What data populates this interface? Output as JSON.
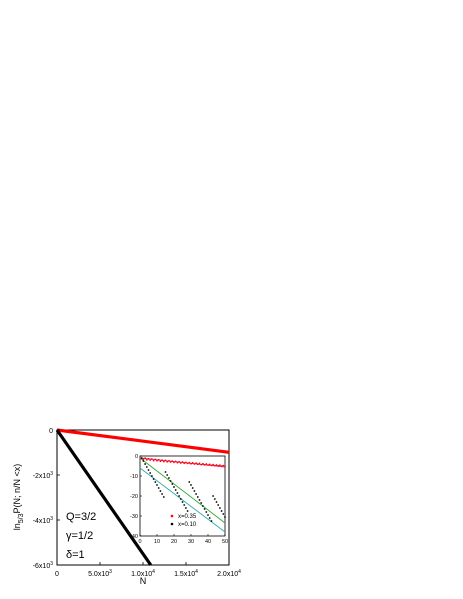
{
  "chart_data": [
    {
      "type": "line",
      "xlabel": "N",
      "ylabel": "ln",
      "ylabel_sub": "5/3",
      "ylabel_tail": "P(N; n/N <x)",
      "xlim": [
        0,
        20000
      ],
      "ylim": [
        -6000,
        0
      ],
      "x_ticks": [
        0,
        5000,
        10000,
        15000,
        20000
      ],
      "x_tick_labels": [
        "0",
        "5.0x10",
        "1.0x10",
        "1.5x10",
        "2.0x10"
      ],
      "x_tick_exps": [
        "",
        "3",
        "4",
        "4",
        "4"
      ],
      "y_ticks": [
        0,
        -2000,
        -4000,
        -6000
      ],
      "y_tick_labels": [
        "0",
        "-2x10",
        "-4x10",
        "-6x10"
      ],
      "y_tick_exps": [
        "",
        "3",
        "3",
        "3"
      ],
      "params": [
        "Q=3/2",
        "γ=1/2",
        "δ=1"
      ],
      "series": [
        {
          "color": "#ff0000",
          "x": [
            0,
            20000
          ],
          "y": [
            0,
            -990
          ]
        },
        {
          "color": "#000000",
          "x": [
            0,
            10900
          ],
          "y": [
            0,
            -6000
          ]
        }
      ]
    },
    {
      "type": "scatter",
      "inset": true,
      "xlim": [
        0,
        50
      ],
      "ylim": [
        -40,
        0
      ],
      "x_ticks": [
        0,
        10,
        20,
        30,
        40,
        50
      ],
      "x_tick_labels": [
        "0",
        "10",
        "20",
        "30",
        "40",
        "50"
      ],
      "y_ticks": [
        0,
        -10,
        -20,
        -30,
        -40
      ],
      "y_tick_labels": [
        "0",
        "-10",
        "-20",
        "-30",
        "-40"
      ],
      "legend": [
        {
          "label": "x=0.35",
          "color": "#ff0000"
        },
        {
          "label": "x=0.10",
          "color": "#000000"
        }
      ],
      "fits": [
        {
          "color": "#cc44aa",
          "x": [
            0,
            50
          ],
          "y": [
            -1.0,
            -5.5
          ]
        },
        {
          "color": "#33aa33",
          "x": [
            0,
            50
          ],
          "y": [
            -1.0,
            -33.5
          ]
        },
        {
          "color": "#33aaaa",
          "x": [
            0,
            50
          ],
          "y": [
            -6.0,
            -38.0
          ]
        }
      ],
      "points_red": {
        "color": "#ff0000",
        "x": [
          1,
          2,
          3,
          4,
          5,
          6,
          7,
          8,
          9,
          10,
          11,
          12,
          13,
          14,
          15,
          16,
          17,
          18,
          19,
          20,
          21,
          22,
          23,
          24,
          25,
          26,
          27,
          28,
          29,
          30,
          31,
          32,
          33,
          34,
          35,
          36,
          37,
          38,
          39,
          40,
          41,
          42,
          43,
          44,
          45,
          46,
          47,
          48,
          49,
          50
        ],
        "y": [
          -1.2,
          -1.6,
          -1.1,
          -1.9,
          -1.4,
          -2.0,
          -1.5,
          -2.3,
          -1.7,
          -2.4,
          -1.9,
          -2.6,
          -2.1,
          -2.8,
          -2.2,
          -2.9,
          -2.4,
          -3.0,
          -2.6,
          -3.2,
          -2.7,
          -3.3,
          -2.9,
          -3.5,
          -3.0,
          -3.6,
          -3.2,
          -3.7,
          -3.3,
          -3.9,
          -3.4,
          -4.0,
          -3.6,
          -4.1,
          -3.7,
          -4.3,
          -3.9,
          -4.4,
          -4.0,
          -4.5,
          -4.2,
          -4.7,
          -4.3,
          -4.8,
          -4.5,
          -4.9,
          -4.6,
          -5.1,
          -4.8,
          -5.2
        ]
      },
      "points_black": {
        "color": "#000000",
        "x": [
          1,
          2,
          3,
          4,
          5,
          6,
          7,
          8,
          9,
          10,
          11,
          12,
          13,
          14,
          15,
          16,
          17,
          18,
          19,
          20,
          21,
          22,
          23,
          24,
          25,
          26,
          27,
          28,
          29,
          30,
          31,
          32,
          33,
          34,
          35,
          36,
          37,
          38,
          39,
          40,
          41,
          42,
          43,
          44,
          45,
          46,
          47,
          48,
          49,
          50
        ],
        "y": [
          -1,
          -2.5,
          -4,
          -5.5,
          -7,
          -8.5,
          -10,
          -11.5,
          -13,
          -14.5,
          -16,
          -17.5,
          -19,
          -20.5,
          -8,
          -9.5,
          -11,
          -12.5,
          -14,
          -15.5,
          -17,
          -18.5,
          -20,
          -21.5,
          -23,
          -24.5,
          -26,
          -27.5,
          -13,
          -14.5,
          -16,
          -17.5,
          -19,
          -20.5,
          -22,
          -23.5,
          -25,
          -26.5,
          -28,
          -29.5,
          -31,
          -32.5,
          -20,
          -21.5,
          -23,
          -24.5,
          -26,
          -27.5,
          -29,
          -30.5
        ]
      }
    }
  ]
}
